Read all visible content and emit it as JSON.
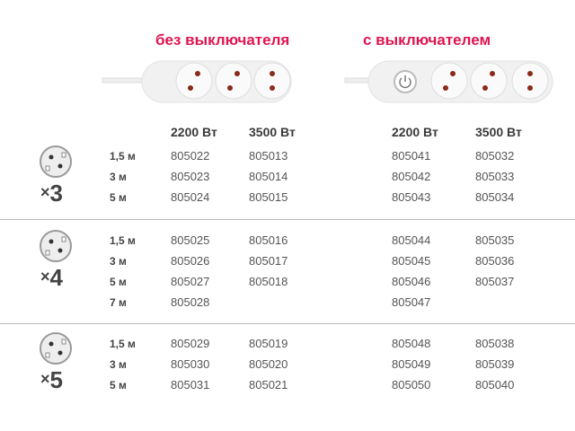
{
  "headers": {
    "no_switch": "без выключателя",
    "with_switch": "с выключателем",
    "cols": [
      "2200 Вт",
      "3500 Вт",
      "2200 Вт",
      "3500 Вт"
    ]
  },
  "accent_color": "#e0134f",
  "icons": [
    "power-strip-no-switch",
    "power-strip-with-switch",
    "socket-icon"
  ],
  "groups": [
    {
      "count": "3",
      "mult": "×",
      "rows": [
        {
          "len": "1,5 м",
          "c": [
            "805022",
            "805013",
            "805041",
            "805032"
          ]
        },
        {
          "len": "3 м",
          "c": [
            "805023",
            "805014",
            "805042",
            "805033"
          ]
        },
        {
          "len": "5 м",
          "c": [
            "805024",
            "805015",
            "805043",
            "805034"
          ]
        }
      ]
    },
    {
      "count": "4",
      "mult": "×",
      "rows": [
        {
          "len": "1,5 м",
          "c": [
            "805025",
            "805016",
            "805044",
            "805035"
          ]
        },
        {
          "len": "3 м",
          "c": [
            "805026",
            "805017",
            "805045",
            "805036"
          ]
        },
        {
          "len": "5 м",
          "c": [
            "805027",
            "805018",
            "805046",
            "805037"
          ]
        },
        {
          "len": "7 м",
          "c": [
            "805028",
            "",
            "805047",
            ""
          ]
        }
      ]
    },
    {
      "count": "5",
      "mult": "×",
      "rows": [
        {
          "len": "1,5 м",
          "c": [
            "805029",
            "805019",
            "805048",
            "805038"
          ]
        },
        {
          "len": "3 м",
          "c": [
            "805030",
            "805020",
            "805049",
            "805039"
          ]
        },
        {
          "len": "5 м",
          "c": [
            "805031",
            "805021",
            "805050",
            "805040"
          ]
        }
      ]
    }
  ]
}
